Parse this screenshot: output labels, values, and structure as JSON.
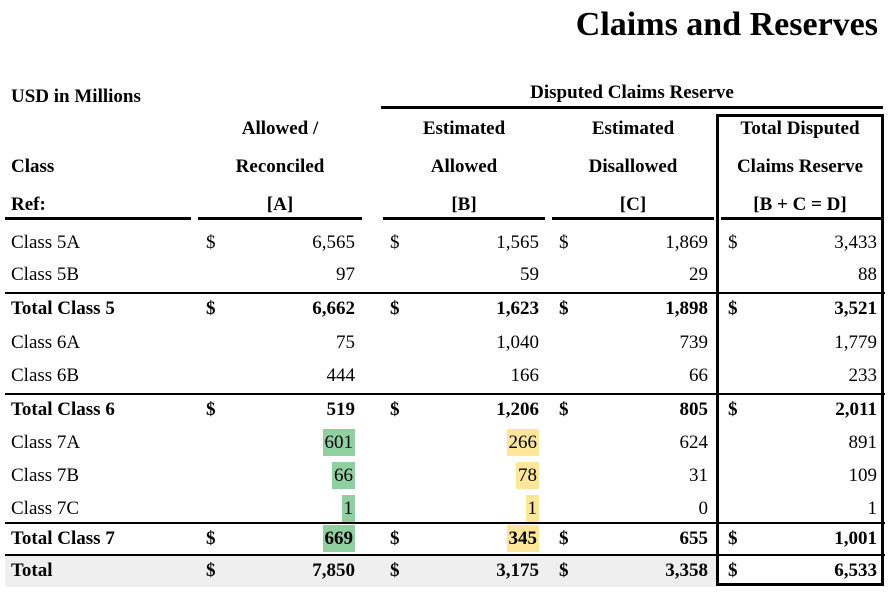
{
  "title": "Claims and Reserves",
  "units": "USD in Millions",
  "group_header": "Disputed Claims Reserve",
  "headers": {
    "class_line1": "Class",
    "class_line2": "Ref:",
    "a": [
      "Allowed /",
      "Reconciled",
      "[A]"
    ],
    "b": [
      "Estimated",
      "Allowed",
      "[B]"
    ],
    "c": [
      "Estimated",
      "Disallowed",
      "[C]"
    ],
    "d": [
      "Total Disputed",
      "Claims Reserve",
      "[B + C = D]"
    ]
  },
  "rows": [
    {
      "label": "Class 5A",
      "a": "6,565",
      "b": "1,565",
      "c": "1,869",
      "d": "3,433",
      "dollar": true
    },
    {
      "label": "Class 5B",
      "a": "97",
      "b": "59",
      "c": "29",
      "d": "88"
    },
    {
      "label": "Total Class 5",
      "a": "6,662",
      "b": "1,623",
      "c": "1,898",
      "d": "3,521",
      "dollar": true,
      "bold": true
    },
    {
      "label": "Class 6A",
      "a": "75",
      "b": "1,040",
      "c": "739",
      "d": "1,779"
    },
    {
      "label": "Class 6B",
      "a": "444",
      "b": "166",
      "c": "66",
      "d": "233"
    },
    {
      "label": "Total Class 6",
      "a": "519",
      "b": "1,206",
      "c": "805",
      "d": "2,011",
      "dollar": true,
      "bold": true
    },
    {
      "label": "Class 7A",
      "a": "601",
      "b": "266",
      "c": "624",
      "d": "891",
      "hl": true
    },
    {
      "label": "Class 7B",
      "a": "66",
      "b": "78",
      "c": "31",
      "d": "109",
      "hl": true
    },
    {
      "label": "Class 7C",
      "a": "1",
      "b": "1",
      "c": "0",
      "d": "1",
      "hl": true
    },
    {
      "label": "Total Class 7",
      "a": "669",
      "b": "345",
      "c": "655",
      "d": "1,001",
      "dollar": true,
      "bold": true,
      "hl": true
    },
    {
      "label": "Total",
      "a": "7,850",
      "b": "3,175",
      "c": "3,358",
      "d": "6,533",
      "dollar": true,
      "bold": true
    }
  ],
  "currency_symbol": "$",
  "highlight_colors": {
    "allowed": "#8fcfa0",
    "estimated_allowed": "#ffe69a",
    "total_row_shade": "#efefef"
  }
}
